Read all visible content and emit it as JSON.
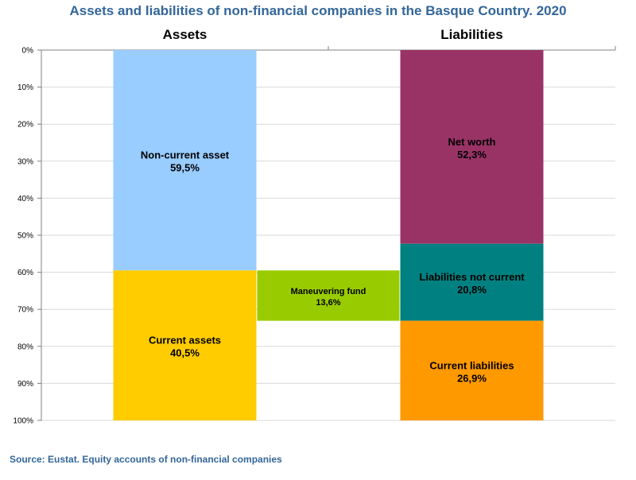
{
  "chart_data": {
    "type": "bar",
    "subtype": "stacked-100-percent",
    "title": "Assets and liabilities of non-financial companies in the Basque Country. 2020",
    "categories": [
      "Assets",
      "Liabilities"
    ],
    "ylim": [
      0,
      100
    ],
    "y_ticks": [
      "0%",
      "10%",
      "20%",
      "30%",
      "40%",
      "50%",
      "60%",
      "70%",
      "80%",
      "90%",
      "100%"
    ],
    "grid": true,
    "series": [
      {
        "category": "Assets",
        "segments": [
          {
            "name": "Non-current asset",
            "value": 59.5,
            "value_label": "59,5%",
            "color": "#99ccff"
          },
          {
            "name": "Current assets",
            "value": 40.5,
            "value_label": "40,5%",
            "color": "#ffcc00"
          }
        ]
      },
      {
        "category": "Liabilities",
        "segments": [
          {
            "name": "Net worth",
            "value": 52.3,
            "value_label": "52,3%",
            "color": "#993366"
          },
          {
            "name": "Liabilities not current",
            "value": 20.8,
            "value_label": "20,8%",
            "color": "#008080"
          },
          {
            "name": "Current liabilities",
            "value": 26.9,
            "value_label": "26,9%",
            "color": "#ff9900"
          }
        ]
      }
    ],
    "annotation": {
      "name": "Maneuvering fund",
      "value_label": "13,6%",
      "from": 59.5,
      "to": 73.1,
      "color": "#99cc00"
    },
    "source": "Source: Eustat. Equity accounts of non-financial companies"
  },
  "colors": {
    "title": "#336699",
    "source": "#336699",
    "grid": "#d9d9d9",
    "axis": "#808080"
  }
}
